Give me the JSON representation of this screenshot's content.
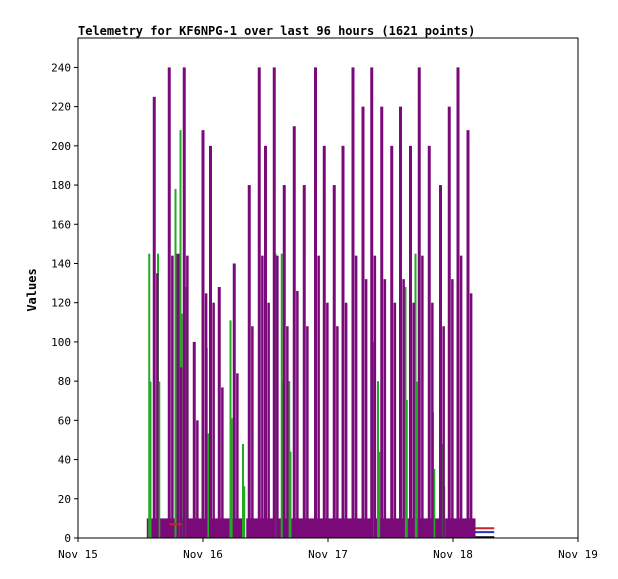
{
  "chart_data": {
    "type": "line",
    "title": "Telemetry for KF6NPG-1 over last 96 hours (1621 points)",
    "xlabel": "",
    "ylabel": "Values",
    "x_ticks": [
      "Nov 15",
      "Nov 16",
      "Nov 17",
      "Nov 18",
      "Nov 19"
    ],
    "x_range": [
      "Nov 15",
      "Nov 19"
    ],
    "y_ticks": [
      0,
      20,
      40,
      60,
      80,
      100,
      120,
      140,
      160,
      180,
      200,
      220,
      240
    ],
    "ylim": [
      0,
      255
    ],
    "grid": false,
    "legend": "none",
    "series": [
      {
        "color": "#7a0a7a",
        "description_values": "dense pulses between ~Nov 15.55 and Nov 18.18; baseline ~10, periodic peaks",
        "peaks": [
          {
            "x": "Nov 15.61",
            "y": 225
          },
          {
            "x": "Nov 15.73",
            "y": 240
          },
          {
            "x": "Nov 15.80",
            "y": 145
          },
          {
            "x": "Nov 15.85",
            "y": 240
          },
          {
            "x": "Nov 15.93",
            "y": 100
          },
          {
            "x": "Nov 16.00",
            "y": 208
          },
          {
            "x": "Nov 16.06",
            "y": 200
          },
          {
            "x": "Nov 16.13",
            "y": 128
          },
          {
            "x": "Nov 16.25",
            "y": 140
          },
          {
            "x": "Nov 16.37",
            "y": 180
          },
          {
            "x": "Nov 16.45",
            "y": 240
          },
          {
            "x": "Nov 16.50",
            "y": 200
          },
          {
            "x": "Nov 16.57",
            "y": 240
          },
          {
            "x": "Nov 16.65",
            "y": 180
          },
          {
            "x": "Nov 16.73",
            "y": 210
          },
          {
            "x": "Nov 16.81",
            "y": 180
          },
          {
            "x": "Nov 16.90",
            "y": 240
          },
          {
            "x": "Nov 16.97",
            "y": 200
          },
          {
            "x": "Nov 17.05",
            "y": 180
          },
          {
            "x": "Nov 17.12",
            "y": 200
          },
          {
            "x": "Nov 17.20",
            "y": 240
          },
          {
            "x": "Nov 17.28",
            "y": 220
          },
          {
            "x": "Nov 17.35",
            "y": 240
          },
          {
            "x": "Nov 17.43",
            "y": 220
          },
          {
            "x": "Nov 17.51",
            "y": 200
          },
          {
            "x": "Nov 17.58",
            "y": 220
          },
          {
            "x": "Nov 17.66",
            "y": 200
          },
          {
            "x": "Nov 17.73",
            "y": 240
          },
          {
            "x": "Nov 17.81",
            "y": 200
          },
          {
            "x": "Nov 17.90",
            "y": 180
          },
          {
            "x": "Nov 17.97",
            "y": 220
          },
          {
            "x": "Nov 18.04",
            "y": 240
          },
          {
            "x": "Nov 18.12",
            "y": 208
          }
        ]
      },
      {
        "color": "#22aa22",
        "description_values": "intermittent green spikes",
        "peaks": [
          {
            "x": "Nov 15.57",
            "y": 145
          },
          {
            "x": "Nov 15.64",
            "y": 145
          },
          {
            "x": "Nov 15.78",
            "y": 178
          },
          {
            "x": "Nov 15.82",
            "y": 208
          },
          {
            "x": "Nov 15.86",
            "y": 128
          },
          {
            "x": "Nov 16.03",
            "y": 97
          },
          {
            "x": "Nov 16.22",
            "y": 111
          },
          {
            "x": "Nov 16.32",
            "y": 48
          },
          {
            "x": "Nov 16.58",
            "y": 145
          },
          {
            "x": "Nov 16.63",
            "y": 145
          },
          {
            "x": "Nov 16.69",
            "y": 80
          },
          {
            "x": "Nov 17.36",
            "y": 100
          },
          {
            "x": "Nov 17.40",
            "y": 80
          },
          {
            "x": "Nov 17.62",
            "y": 128
          },
          {
            "x": "Nov 17.70",
            "y": 145
          },
          {
            "x": "Nov 17.84",
            "y": 64
          },
          {
            "x": "Nov 17.92",
            "y": 48
          }
        ]
      },
      {
        "color": "#cc2222",
        "description_values": "low-level red trace ~4-5 near end",
        "peaks": [
          {
            "x": "Nov 18.20",
            "y": 5
          }
        ]
      },
      {
        "color": "#2233cc",
        "description_values": "low-level blue trace ~4 near end",
        "peaks": [
          {
            "x": "Nov 18.20",
            "y": 4
          }
        ]
      }
    ]
  }
}
